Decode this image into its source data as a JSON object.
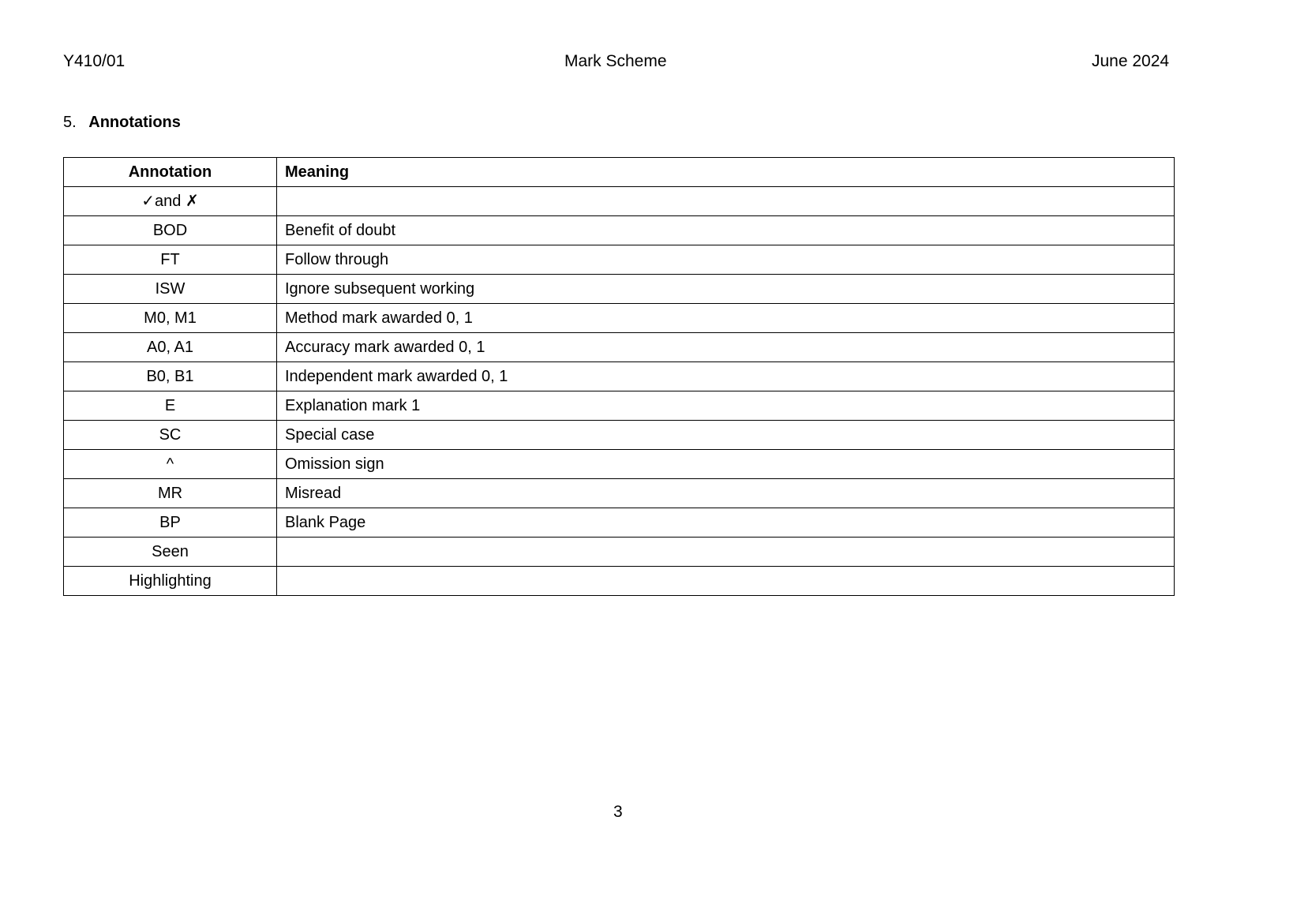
{
  "header": {
    "left": "Y410/01",
    "center": "Mark Scheme",
    "right": "June 2024"
  },
  "section": {
    "number": "5.",
    "title": "Annotations"
  },
  "table": {
    "columns": [
      "Annotation",
      "Meaning"
    ],
    "rows": [
      {
        "annotation": "✓and ✗",
        "meaning": ""
      },
      {
        "annotation": "BOD",
        "meaning": "Benefit of doubt"
      },
      {
        "annotation": "FT",
        "meaning": "Follow through"
      },
      {
        "annotation": "ISW",
        "meaning": "Ignore subsequent working"
      },
      {
        "annotation": "M0, M1",
        "meaning": "Method mark awarded 0, 1"
      },
      {
        "annotation": "A0, A1",
        "meaning": "Accuracy mark awarded 0, 1"
      },
      {
        "annotation": "B0, B1",
        "meaning": "Independent mark awarded 0, 1"
      },
      {
        "annotation": "E",
        "meaning": "Explanation mark 1"
      },
      {
        "annotation": "SC",
        "meaning": "Special case"
      },
      {
        "annotation": "^",
        "meaning": "Omission sign"
      },
      {
        "annotation": "MR",
        "meaning": "Misread"
      },
      {
        "annotation": "BP",
        "meaning": "Blank Page"
      },
      {
        "annotation": "Seen",
        "meaning": ""
      },
      {
        "annotation": "Highlighting",
        "meaning": ""
      }
    ]
  },
  "footer": {
    "page_number": "3"
  }
}
